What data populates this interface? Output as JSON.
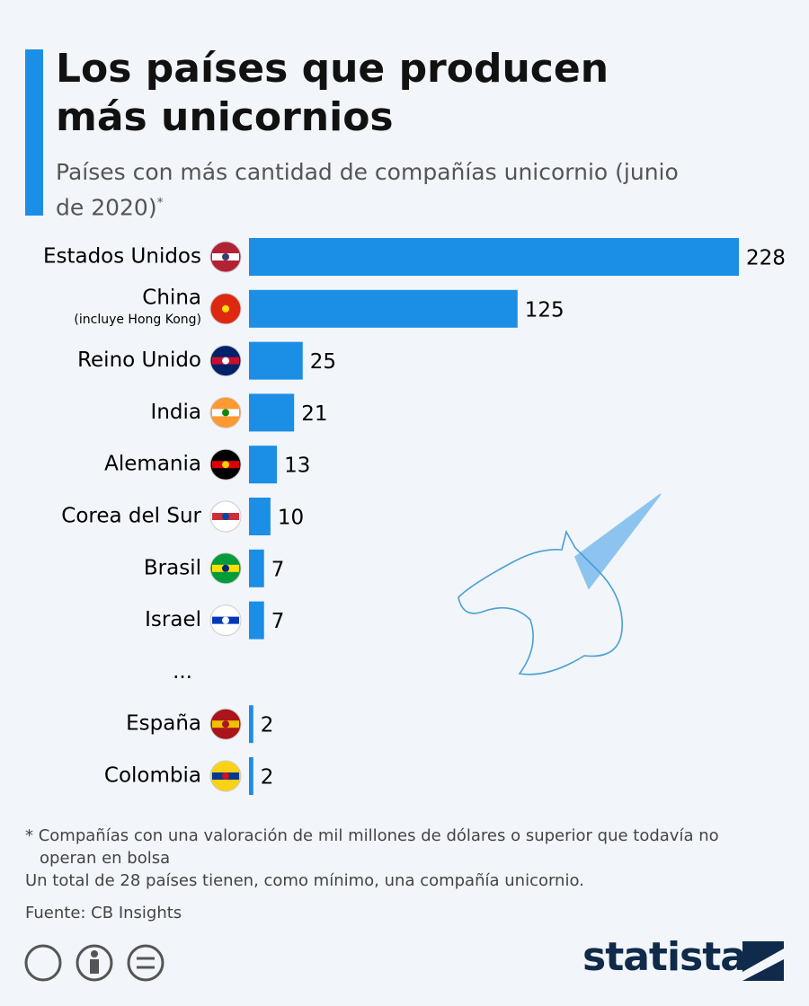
{
  "chart_data": {
    "type": "hbar",
    "title": "Los países que producen más unicornios",
    "subtitle": "Países con más cantidad de compañías unicornio (junio de 2020)",
    "subtitle_mark": "*",
    "categories": [
      "Estados Unidos",
      "China",
      "Reino Unido",
      "India",
      "Alemania",
      "Corea del Sur",
      "Brasil",
      "Israel",
      "...",
      "España",
      "Colombia"
    ],
    "category_sublabels": [
      null,
      "(incluye Hong Kong)",
      null,
      null,
      null,
      null,
      null,
      null,
      null,
      null,
      null
    ],
    "values": [
      228,
      125,
      25,
      21,
      13,
      10,
      7,
      7,
      null,
      2,
      2
    ],
    "color": "#1b8ee6",
    "notes": [
      "* Compañías con una valoración de mil millones de dólares o superior que todavía no operan en bolsa",
      "Un total de 28 países tienen, como mínimo, una compañía unicornio."
    ],
    "source": "Fuente: CB Insights",
    "brand": "statista"
  }
}
